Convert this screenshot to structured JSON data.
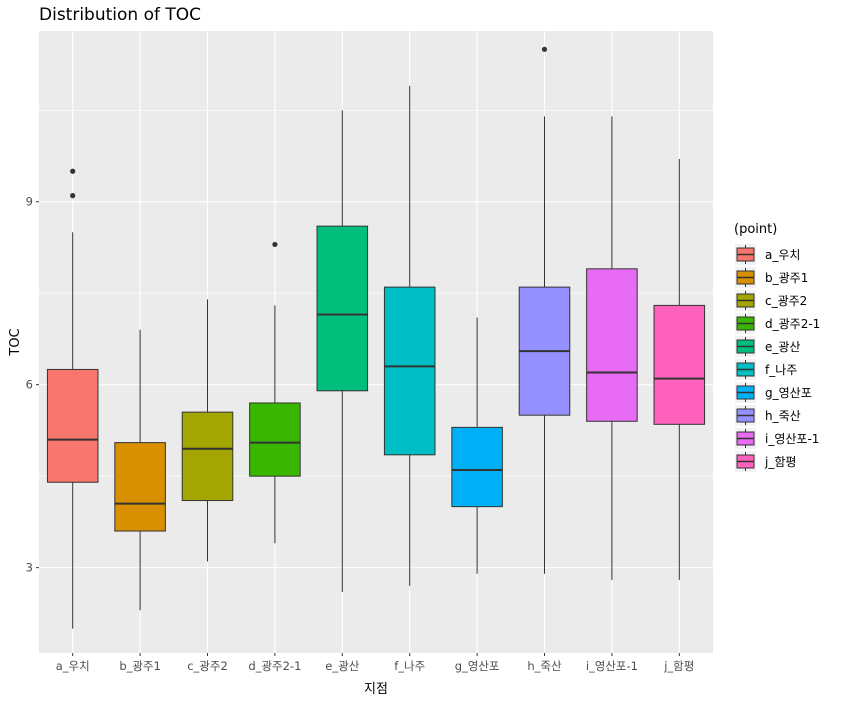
{
  "chart_data": {
    "type": "boxplot",
    "title": "Distribution of TOC",
    "xlabel": "지점",
    "ylabel": "TOC",
    "ylim": [
      1.6,
      11.8
    ],
    "yticks": [
      3,
      6,
      9
    ],
    "grid": true,
    "legend": {
      "title": "(point)",
      "placement": "right"
    },
    "categories": [
      "a_우치",
      "b_광주1",
      "c_광주2",
      "d_광주2-1",
      "e_광산",
      "f_나주",
      "g_영산포",
      "h_죽산",
      "i_영산포-1",
      "j_함평"
    ],
    "colors": [
      "#F8766D",
      "#D89000",
      "#A3A500",
      "#39B600",
      "#00BF7D",
      "#00BFC4",
      "#00B0F6",
      "#9590FF",
      "#E76BF3",
      "#FF62BC"
    ],
    "boxes": [
      {
        "whisker_low": 2.0,
        "q1": 4.4,
        "median": 5.1,
        "q3": 6.25,
        "whisker_high": 8.5,
        "outliers": [
          9.1,
          9.5
        ]
      },
      {
        "whisker_low": 2.3,
        "q1": 3.6,
        "median": 4.05,
        "q3": 5.05,
        "whisker_high": 6.9,
        "outliers": []
      },
      {
        "whisker_low": 3.1,
        "q1": 4.1,
        "median": 4.95,
        "q3": 5.55,
        "whisker_high": 7.4,
        "outliers": []
      },
      {
        "whisker_low": 3.4,
        "q1": 4.5,
        "median": 5.05,
        "q3": 5.7,
        "whisker_high": 7.3,
        "outliers": [
          8.3
        ]
      },
      {
        "whisker_low": 2.6,
        "q1": 5.9,
        "median": 7.15,
        "q3": 8.6,
        "whisker_high": 10.5,
        "outliers": []
      },
      {
        "whisker_low": 2.7,
        "q1": 4.85,
        "median": 6.3,
        "q3": 7.6,
        "whisker_high": 10.9,
        "outliers": []
      },
      {
        "whisker_low": 2.9,
        "q1": 4.0,
        "median": 4.6,
        "q3": 5.3,
        "whisker_high": 7.1,
        "outliers": []
      },
      {
        "whisker_low": 2.9,
        "q1": 5.5,
        "median": 6.55,
        "q3": 7.6,
        "whisker_high": 10.4,
        "outliers": [
          11.5
        ]
      },
      {
        "whisker_low": 2.8,
        "q1": 5.4,
        "median": 6.2,
        "q3": 7.9,
        "whisker_high": 10.4,
        "outliers": []
      },
      {
        "whisker_low": 2.8,
        "q1": 5.35,
        "median": 6.1,
        "q3": 7.3,
        "whisker_high": 9.7,
        "outliers": []
      }
    ]
  }
}
